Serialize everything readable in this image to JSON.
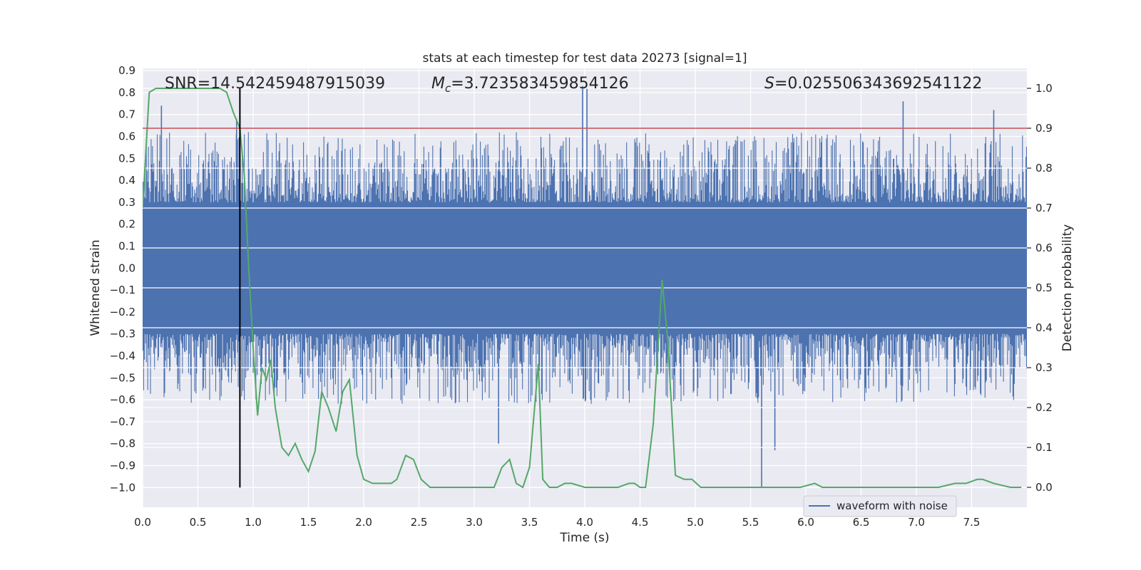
{
  "chart_data": {
    "type": "line",
    "title": "stats at each timestep for test data 20273 [signal=1]",
    "xlabel": "Time (s)",
    "ylabel": "Whitened strain",
    "y2label": "Detection probability",
    "xlim": [
      0,
      8
    ],
    "ylim": [
      -1.09,
      0.91
    ],
    "y2lim": [
      -0.05,
      1.05
    ],
    "x_ticks": [
      0.0,
      0.5,
      1.0,
      1.5,
      2.0,
      2.5,
      3.0,
      3.5,
      4.0,
      4.5,
      5.0,
      5.5,
      6.0,
      6.5,
      7.0,
      7.5
    ],
    "x_tick_labels": [
      "0.0",
      "0.5",
      "1.0",
      "1.5",
      "2.0",
      "2.5",
      "3.0",
      "3.5",
      "4.0",
      "4.5",
      "5.0",
      "5.5",
      "6.0",
      "6.5",
      "7.0",
      "7.5"
    ],
    "y_ticks": [
      0.9,
      0.8,
      0.7,
      0.6,
      0.5,
      0.4,
      0.3,
      0.2,
      0.1,
      0.0,
      -0.1,
      -0.2,
      -0.3,
      -0.4,
      -0.5,
      -0.6,
      -0.7,
      -0.8,
      -0.9,
      -1.0
    ],
    "y_tick_labels": [
      "0.9",
      "0.8",
      "0.7",
      "0.6",
      "0.5",
      "0.4",
      "0.3",
      "0.2",
      "0.1",
      "0.0",
      "−0.1",
      "−0.2",
      "−0.3",
      "−0.4",
      "−0.5",
      "−0.6",
      "−0.7",
      "−0.8",
      "−0.9",
      "−1.0"
    ],
    "y2_ticks": [
      1.0,
      0.9,
      0.8,
      0.7,
      0.6,
      0.5,
      0.4,
      0.3,
      0.2,
      0.1,
      0.0
    ],
    "y2_tick_labels": [
      "1.0",
      "0.9",
      "0.8",
      "0.7",
      "0.6",
      "0.5",
      "0.4",
      "0.3",
      "0.2",
      "0.1",
      "0.0"
    ],
    "annotations": {
      "snr": "SNR=14.542459487915039",
      "mc_symbol": "M",
      "mc_sub": "c",
      "mc_value": "=3.723583459854126",
      "s_symbol": "S",
      "s_value": "=0.025506343692541122"
    },
    "threshold_line": {
      "axis": "y2",
      "value": 0.9,
      "color": "#c44e52"
    },
    "vertical_marker": {
      "x": 0.88,
      "y_from": -1.0,
      "y_to": 0.82,
      "color": "#000000"
    },
    "legend": {
      "label": "waveform with noise",
      "location": "lower-right"
    },
    "series": [
      {
        "name": "waveform with noise",
        "axis": "y",
        "color": "#4c72b0",
        "description": "dense whitened strain noise, roughly +-0.3 envelope with peaks to ~0.8 and dips to -1.0",
        "spikes": [
          {
            "x": 0.17,
            "y": 0.74
          },
          {
            "x": 0.85,
            "y": 0.68
          },
          {
            "x": 1.8,
            "y": 0.08
          },
          {
            "x": 3.22,
            "y": -0.8
          },
          {
            "x": 3.98,
            "y": 0.83
          },
          {
            "x": 4.02,
            "y": 0.82
          },
          {
            "x": 5.6,
            "y": -1.0
          },
          {
            "x": 5.72,
            "y": -0.83
          },
          {
            "x": 6.88,
            "y": 0.76
          },
          {
            "x": 7.7,
            "y": 0.72
          }
        ]
      },
      {
        "name": "detection probability",
        "axis": "y2",
        "color": "#55a868",
        "x": [
          0.0,
          0.06,
          0.12,
          0.2,
          0.3,
          0.4,
          0.5,
          0.6,
          0.7,
          0.76,
          0.82,
          0.88,
          0.92,
          0.96,
          1.0,
          1.04,
          1.08,
          1.12,
          1.16,
          1.2,
          1.26,
          1.32,
          1.38,
          1.44,
          1.5,
          1.56,
          1.62,
          1.68,
          1.75,
          1.81,
          1.87,
          1.94,
          2.0,
          2.08,
          2.15,
          2.25,
          2.3,
          2.38,
          2.45,
          2.52,
          2.6,
          2.75,
          3.0,
          3.18,
          3.25,
          3.32,
          3.38,
          3.44,
          3.5,
          3.58,
          3.62,
          3.68,
          3.75,
          3.82,
          3.88,
          4.0,
          4.15,
          4.3,
          4.4,
          4.45,
          4.5,
          4.55,
          4.62,
          4.7,
          4.75,
          4.82,
          4.9,
          4.97,
          5.05,
          5.1,
          5.3,
          5.6,
          5.8,
          5.95,
          6.08,
          6.15,
          6.35,
          6.7,
          7.0,
          7.2,
          7.35,
          7.45,
          7.55,
          7.6,
          7.7,
          7.85,
          7.95
        ],
        "y": [
          0.7,
          0.99,
          1.0,
          1.0,
          1.0,
          1.0,
          1.0,
          1.0,
          1.0,
          0.99,
          0.94,
          0.9,
          0.78,
          0.55,
          0.35,
          0.18,
          0.3,
          0.27,
          0.32,
          0.2,
          0.1,
          0.08,
          0.11,
          0.07,
          0.04,
          0.09,
          0.24,
          0.2,
          0.14,
          0.24,
          0.27,
          0.08,
          0.02,
          0.01,
          0.01,
          0.01,
          0.02,
          0.08,
          0.07,
          0.02,
          0.0,
          0.0,
          0.0,
          0.0,
          0.05,
          0.07,
          0.01,
          0.0,
          0.05,
          0.31,
          0.02,
          0.0,
          0.0,
          0.01,
          0.01,
          0.0,
          0.0,
          0.0,
          0.01,
          0.01,
          0.0,
          0.0,
          0.16,
          0.52,
          0.37,
          0.03,
          0.02,
          0.02,
          0.0,
          0.0,
          0.0,
          0.0,
          0.0,
          0.0,
          0.01,
          0.0,
          0.0,
          0.0,
          0.0,
          0.0,
          0.01,
          0.01,
          0.02,
          0.02,
          0.01,
          0.0,
          0.0
        ]
      }
    ]
  }
}
